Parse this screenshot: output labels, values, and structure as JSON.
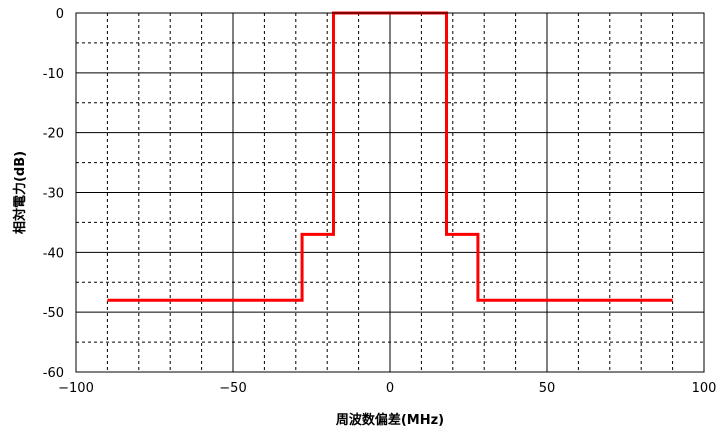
{
  "chart_data": {
    "type": "line",
    "title": "",
    "xlabel": "周波数偏差(MHz)",
    "ylabel": "相対電力(dB)",
    "xlim": [
      -100,
      100
    ],
    "ylim": [
      -60,
      0
    ],
    "x_ticks": [
      -100,
      -50,
      0,
      50,
      100
    ],
    "x_tick_labels": [
      "−100",
      "−50",
      "0",
      "50",
      "100"
    ],
    "y_ticks": [
      0,
      -10,
      -20,
      -30,
      -40,
      -50,
      -60
    ],
    "y_tick_labels": [
      "0",
      "-10",
      "-20",
      "-30",
      "-40",
      "-50",
      "-60"
    ],
    "grid": true,
    "minor_grid": true,
    "legend": "none",
    "series": [
      {
        "color": "#ff0000",
        "step": true,
        "points": [
          [
            -90,
            -48
          ],
          [
            -28,
            -48
          ],
          [
            -28,
            -37
          ],
          [
            -18,
            -37
          ],
          [
            -18,
            0
          ],
          [
            18,
            0
          ],
          [
            18,
            -37
          ],
          [
            28,
            -37
          ],
          [
            28,
            -48
          ],
          [
            90,
            -48
          ]
        ]
      }
    ]
  }
}
